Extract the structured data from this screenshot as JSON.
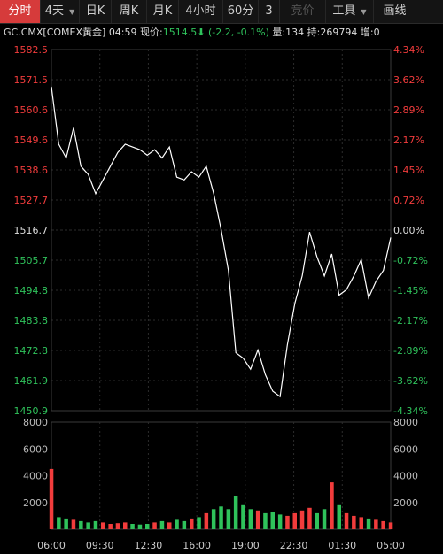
{
  "toolbar": {
    "tabs": [
      {
        "label": "分时",
        "active": true
      },
      {
        "label": "4天",
        "has_dropdown": true
      },
      {
        "label": "日K"
      },
      {
        "label": "周K"
      },
      {
        "label": "月K"
      },
      {
        "label": "4小时"
      },
      {
        "label": "60分"
      },
      {
        "label": "3"
      },
      {
        "label": "竞价",
        "disabled": true
      },
      {
        "label": "工具",
        "has_dropdown": true
      },
      {
        "label": "画线"
      }
    ]
  },
  "info": {
    "symbol": "GC.CMX[COMEX黄金]",
    "time": "04:59",
    "price_label": "现价:",
    "price": "1514.5",
    "change": "(-2.2, -0.1%)",
    "volume_label": "量:",
    "volume": "134",
    "oi_label": "持:",
    "oi": "269794",
    "oi_change_label": "增:",
    "oi_change": "0"
  },
  "colors": {
    "up": "#f23c3c",
    "down": "#2fc25b",
    "neutral": "#dddddd",
    "line": "#ffffff",
    "grid": "#2c2c2c"
  },
  "chart_data": {
    "type": "line",
    "price_axis": {
      "ticks": [
        "1582.5",
        "1571.5",
        "1560.6",
        "1549.6",
        "1538.6",
        "1527.7",
        "1516.7",
        "1505.7",
        "1494.8",
        "1483.8",
        "1472.8",
        "1461.9",
        "1450.9"
      ],
      "min": 1450.9,
      "max": 1582.5,
      "prev_close": 1516.7
    },
    "percent_axis": {
      "ticks": [
        "4.34%",
        "3.62%",
        "2.89%",
        "2.17%",
        "1.45%",
        "0.72%",
        "0.00%",
        "-0.72%",
        "-1.45%",
        "-2.17%",
        "-2.89%",
        "-3.62%",
        "-4.34%"
      ]
    },
    "volume_axis": {
      "ticks": [
        "8000",
        "6000",
        "4000",
        "2000"
      ],
      "max": 8000
    },
    "x_labels": [
      "06:00",
      "09:30",
      "12:30",
      "16:00",
      "19:00",
      "22:30",
      "01:30",
      "05:00"
    ],
    "x": [
      "06:00",
      "06:30",
      "07:00",
      "07:30",
      "08:00",
      "08:30",
      "09:00",
      "09:30",
      "10:00",
      "10:30",
      "11:00",
      "11:30",
      "12:00",
      "12:30",
      "13:00",
      "13:30",
      "14:00",
      "14:30",
      "15:00",
      "15:30",
      "16:00",
      "16:30",
      "17:00",
      "17:30",
      "18:00",
      "18:30",
      "19:00",
      "19:30",
      "20:00",
      "20:30",
      "21:00",
      "21:30",
      "22:00",
      "22:30",
      "23:00",
      "23:30",
      "00:00",
      "00:30",
      "01:00",
      "01:30",
      "02:00",
      "02:30",
      "03:00",
      "03:30",
      "04:00",
      "04:30",
      "05:00"
    ],
    "series": [
      {
        "values": [
          1569,
          1548,
          1543,
          1554,
          1540,
          1537,
          1530,
          1535,
          1540,
          1545,
          1548,
          1547,
          1546,
          1544,
          1546,
          1543,
          1547,
          1536,
          1535,
          1538,
          1536,
          1540,
          1530,
          1517,
          1502,
          1472,
          1470,
          1466,
          1473,
          1464,
          1458,
          1456,
          1475,
          1490,
          1500,
          1516,
          1507,
          1500,
          1508,
          1493,
          1495,
          1500,
          1506,
          1492,
          1498,
          1502,
          1514
        ]
      },
      {
        "values": [
          4500,
          900,
          800,
          700,
          600,
          500,
          600,
          500,
          400,
          450,
          500,
          400,
          350,
          400,
          500,
          600,
          500,
          700,
          600,
          800,
          900,
          1200,
          1500,
          1700,
          1500,
          2500,
          1800,
          1500,
          1400,
          1200,
          1300,
          1100,
          1000,
          1200,
          1400,
          1600,
          1200,
          1500,
          3500,
          1800,
          1200,
          1000,
          900,
          800,
          700,
          600,
          500
        ]
      }
    ]
  }
}
